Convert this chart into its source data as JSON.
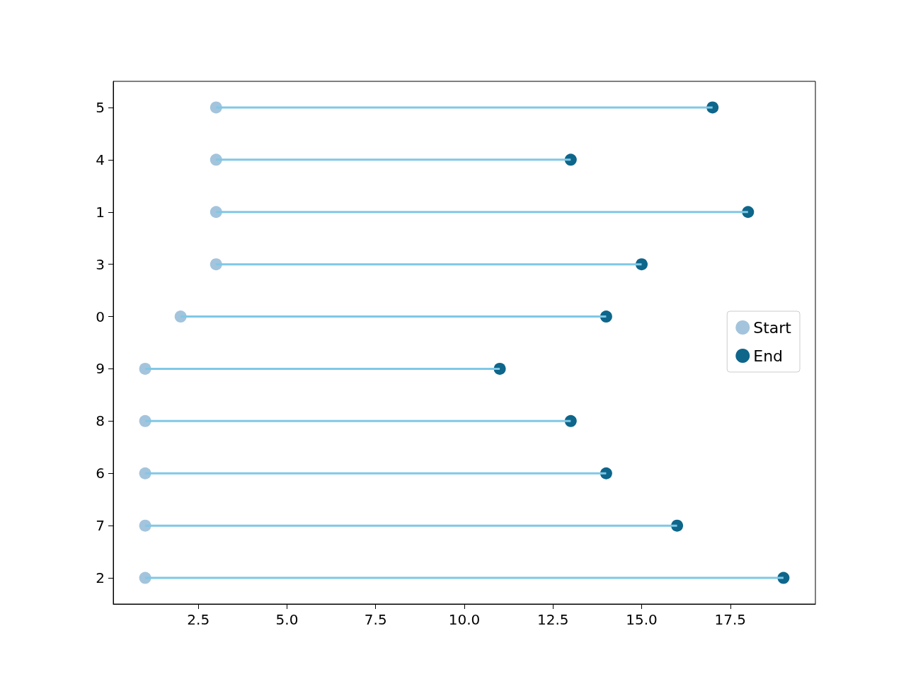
{
  "chart_data": {
    "type": "scatter",
    "orientation": "horizontal",
    "categories": [
      "5",
      "4",
      "1",
      "3",
      "0",
      "9",
      "8",
      "6",
      "7",
      "2"
    ],
    "series": [
      {
        "type": "bar",
        "color": "#7fc8e6",
        "base": [
          3,
          3,
          3,
          3,
          2,
          1,
          1,
          1,
          1,
          1
        ],
        "values": [
          14,
          10,
          15,
          12,
          12,
          10,
          12,
          13,
          15,
          18
        ]
      },
      {
        "name": "Start",
        "color": "#a3c4dc",
        "values": [
          3,
          3,
          3,
          3,
          2,
          1,
          1,
          1,
          1,
          1
        ]
      },
      {
        "name": "End",
        "color": "#0e668b",
        "values": [
          17,
          13,
          18,
          15,
          14,
          11,
          13,
          14,
          16,
          19
        ]
      }
    ],
    "xlim": [
      0.1,
      19.9
    ],
    "xticks": [
      {
        "value": 2.5,
        "label": "2.5"
      },
      {
        "value": 5,
        "label": "5.0"
      },
      {
        "value": 7.5,
        "label": "7.5"
      },
      {
        "value": 10,
        "label": "10.0"
      },
      {
        "value": 12.5,
        "label": "12.5"
      },
      {
        "value": 15,
        "label": "15.0"
      },
      {
        "value": 17.5,
        "label": "17.5"
      }
    ],
    "marker": "circle",
    "legend": "right",
    "grid": false
  }
}
